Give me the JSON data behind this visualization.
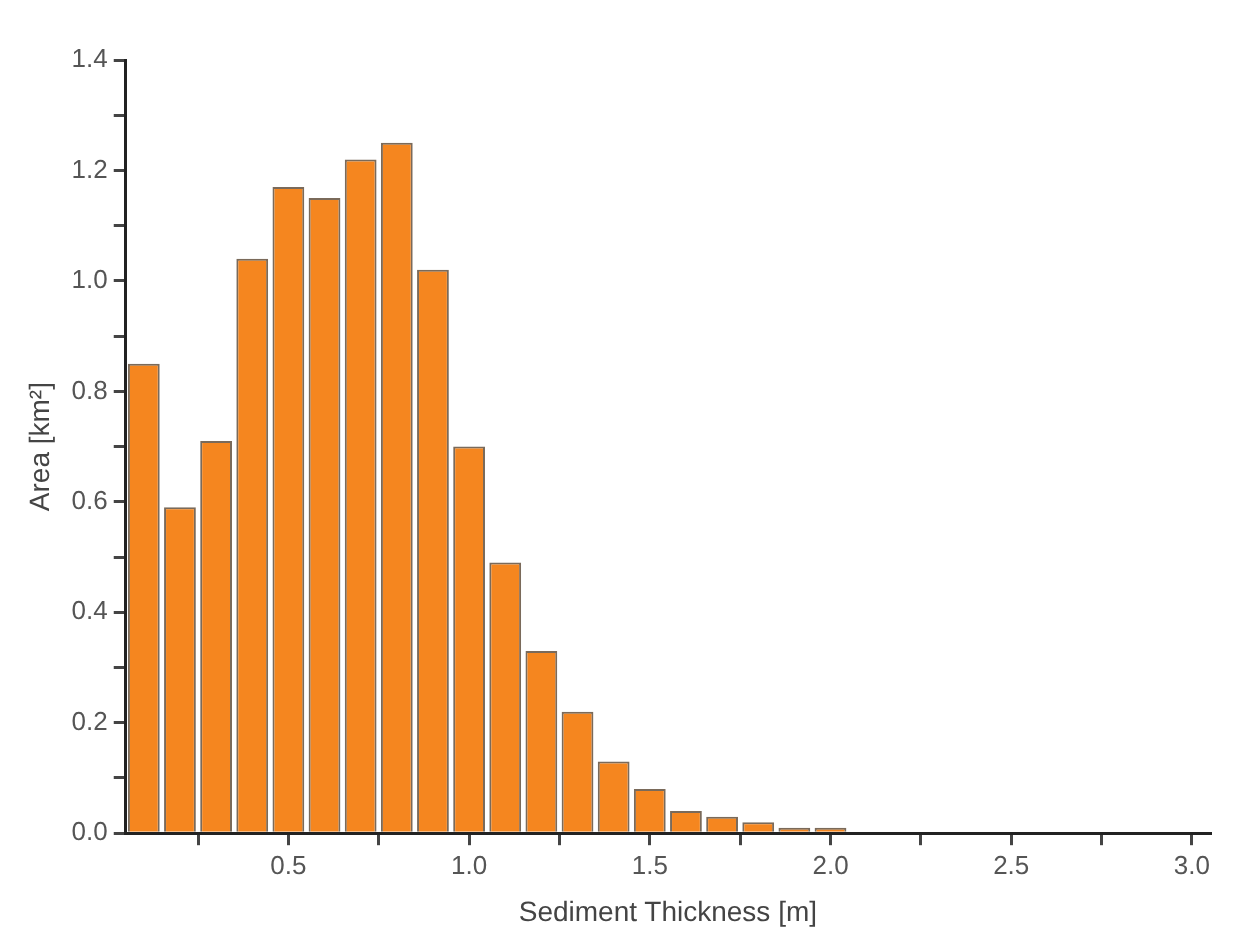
{
  "chart_data": {
    "type": "histogram",
    "xlabel": "Sediment Thickness [m]",
    "ylabel": "Area [km²]",
    "bins": [
      0.05,
      0.15,
      0.25,
      0.35,
      0.45,
      0.55,
      0.65,
      0.75,
      0.85,
      0.95,
      1.05,
      1.15,
      1.25,
      1.35,
      1.45,
      1.55,
      1.65,
      1.75,
      1.85,
      1.95,
      2.05,
      2.15,
      2.25,
      2.35,
      2.45,
      2.55,
      2.65,
      2.75,
      2.85,
      2.95,
      3.05
    ],
    "values": [
      0.85,
      0.59,
      0.71,
      1.04,
      1.17,
      1.15,
      1.22,
      1.25,
      1.02,
      0.7,
      0.49,
      0.33,
      0.22,
      0.13,
      0.08,
      0.04,
      0.03,
      0.02,
      0.01,
      0.01,
      null,
      null,
      null,
      null,
      null,
      null,
      null,
      null,
      null,
      null
    ],
    "color": "#f5861f",
    "xlim": [
      0.05,
      3.05
    ],
    "xticks": [
      {
        "value": 0.25,
        "label": null
      },
      0.5,
      {
        "value": 0.75,
        "label": null
      },
      {
        "value": 1,
        "label": "1.0"
      },
      {
        "value": 1.25,
        "label": null
      },
      1.5,
      {
        "value": 1.75,
        "label": null
      },
      {
        "value": 2,
        "label": "2.0"
      },
      {
        "value": 2.25,
        "label": null
      },
      2.5,
      {
        "value": 2.75,
        "label": null
      },
      {
        "value": 3,
        "label": "3.0"
      }
    ],
    "ylim": [
      0,
      1.4
    ],
    "yticks": [
      {
        "value": 0,
        "label": "0.0"
      },
      {
        "value": 0.1,
        "label": null
      },
      0.2,
      {
        "value": 0.3,
        "label": null
      },
      0.4,
      {
        "value": 0.5,
        "label": null
      },
      0.6,
      {
        "value": 0.7,
        "label": null
      },
      0.8,
      {
        "value": 0.9,
        "label": null
      },
      {
        "value": 1,
        "label": "1.0"
      },
      {
        "value": 1.1,
        "label": null
      },
      1.2,
      {
        "value": 1.3,
        "label": null
      },
      1.4
    ],
    "grid": false,
    "legend": false
  }
}
